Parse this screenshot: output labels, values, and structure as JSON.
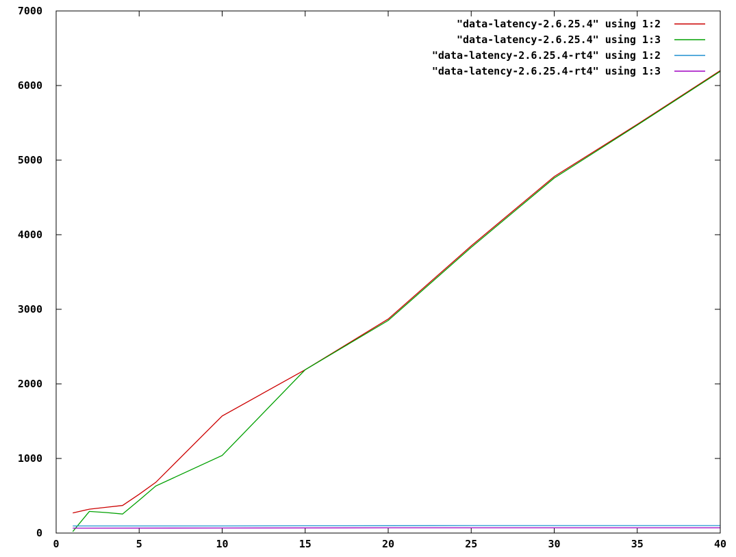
{
  "chart_data": {
    "type": "line",
    "title": "",
    "xlabel": "",
    "ylabel": "",
    "xlim": [
      0,
      40
    ],
    "ylim": [
      0,
      7000
    ],
    "x_ticks": [
      0,
      5,
      10,
      15,
      20,
      25,
      30,
      35,
      40
    ],
    "y_ticks": [
      0,
      1000,
      2000,
      3000,
      4000,
      5000,
      6000,
      7000
    ],
    "x_tick_labels": [
      "0",
      "5",
      "10",
      "15",
      "20",
      "25",
      "30",
      "35",
      "40"
    ],
    "y_tick_labels": [
      "0",
      "1000",
      "2000",
      "3000",
      "4000",
      "5000",
      "6000",
      "7000"
    ],
    "grid": false,
    "legend_position": "top-right",
    "series": [
      {
        "name": "\"data-latency-2.6.25.4\" using 1:2",
        "color": "#cc0000",
        "points": [
          [
            1,
            270
          ],
          [
            2,
            320
          ],
          [
            3,
            345
          ],
          [
            4,
            370
          ],
          [
            5,
            520
          ],
          [
            6,
            680
          ],
          [
            10,
            1570
          ],
          [
            15,
            2190
          ],
          [
            20,
            2870
          ],
          [
            25,
            3850
          ],
          [
            30,
            4780
          ],
          [
            35,
            5480
          ],
          [
            40,
            6200
          ]
        ]
      },
      {
        "name": "\"data-latency-2.6.25.4\" using 1:3",
        "color": "#00a000",
        "points": [
          [
            1,
            20
          ],
          [
            2,
            290
          ],
          [
            3,
            275
          ],
          [
            4,
            255
          ],
          [
            5,
            440
          ],
          [
            6,
            630
          ],
          [
            10,
            1040
          ],
          [
            15,
            2190
          ],
          [
            20,
            2850
          ],
          [
            25,
            3830
          ],
          [
            30,
            4760
          ],
          [
            35,
            5470
          ],
          [
            40,
            6190
          ]
        ]
      },
      {
        "name": "\"data-latency-2.6.25.4-rt4\" using 1:2",
        "color": "#1f8fd0",
        "points": [
          [
            1,
            95
          ],
          [
            10,
            95
          ],
          [
            15,
            97
          ],
          [
            20,
            98
          ],
          [
            25,
            100
          ],
          [
            30,
            100
          ],
          [
            35,
            100
          ],
          [
            40,
            100
          ]
        ]
      },
      {
        "name": "\"data-latency-2.6.25.4-rt4\" using 1:3",
        "color": "#a000c0",
        "points": [
          [
            1,
            65
          ],
          [
            10,
            68
          ],
          [
            20,
            70
          ],
          [
            25,
            70
          ],
          [
            30,
            70
          ],
          [
            35,
            70
          ],
          [
            40,
            70
          ]
        ]
      }
    ]
  }
}
